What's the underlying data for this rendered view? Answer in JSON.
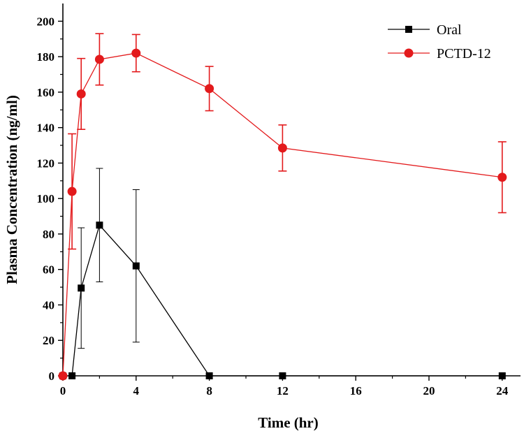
{
  "chart_data": {
    "type": "line",
    "title": "",
    "xlabel": "Time (hr)",
    "ylabel": "Plasma Concentration (ng/ml)",
    "xlim": [
      0,
      25
    ],
    "ylim": [
      0,
      210
    ],
    "xticks": [
      0,
      4,
      8,
      12,
      16,
      20,
      24
    ],
    "yticks": [
      0,
      20,
      40,
      60,
      80,
      100,
      120,
      140,
      160,
      180,
      200
    ],
    "grid": false,
    "legend_position": "top-right",
    "series": [
      {
        "name": "Oral",
        "color": "#000000",
        "marker": "square",
        "x": [
          0,
          0.5,
          1,
          2,
          4,
          8,
          12,
          24
        ],
        "y": [
          0,
          0,
          49.5,
          85,
          62,
          0,
          0,
          0
        ],
        "err": [
          0,
          0,
          34,
          32,
          43,
          0,
          0,
          0
        ]
      },
      {
        "name": "PCTD-12",
        "color": "#e31a1c",
        "marker": "circle",
        "x": [
          0,
          0.5,
          1,
          2,
          4,
          8,
          12,
          24
        ],
        "y": [
          0,
          104,
          159,
          178.5,
          182,
          162,
          128.5,
          112
        ],
        "err": [
          0,
          32.5,
          20,
          14.5,
          10.5,
          12.5,
          13,
          20
        ]
      }
    ]
  }
}
